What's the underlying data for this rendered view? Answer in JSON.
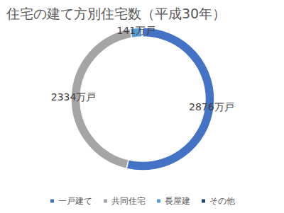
{
  "chart_data": {
    "type": "doughnut",
    "title": "住宅の建て方別住宅数（平成30年）",
    "categories": [
      "一戸建て",
      "共同住宅",
      "長屋建",
      "その他"
    ],
    "values": [
      2876,
      2334,
      141,
      10
    ],
    "value_labels": [
      "2876万戸",
      "2334万戸",
      "141万戸",
      null
    ],
    "colors": [
      "#4472c4",
      "#a5a5a5",
      "#5b9bd5",
      "#264478"
    ],
    "data_labels": true,
    "legend": "bottom"
  }
}
